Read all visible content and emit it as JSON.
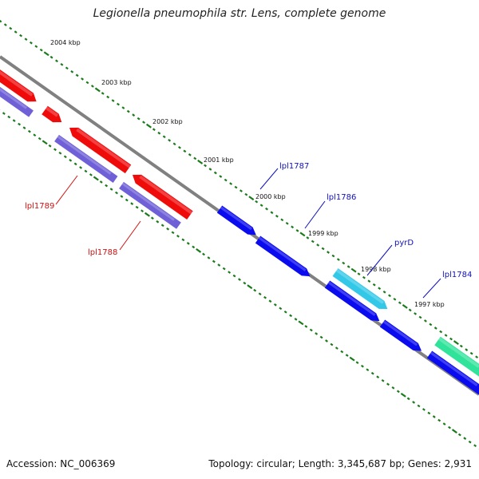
{
  "title": "Legionella pneumophila str. Lens, complete genome",
  "accession_text": "Accession: NC_006369",
  "topology_text": "Topology: circular; Length: 3,345,687 bp; Genes: 2,931",
  "colors": {
    "backbone": "#808080",
    "tick": "#1a7a1a",
    "forward_gene": "#0b0bf0",
    "reverse_gene": "#f00b0b",
    "reverse_cds_lane": "#7060d8",
    "pyrD_gene": "#33c8e8",
    "cluster_gene": "#30e39a",
    "forward_label": "#1010c0",
    "reverse_label": "#d01010"
  },
  "kbp_labels": [
    "2004 kbp",
    "2003 kbp",
    "2002 kbp",
    "2001 kbp",
    "2000 kbp",
    "1999 kbp",
    "1998 kbp",
    "1997 kbp"
  ],
  "gene_labels": {
    "lpl1787": "lpl1787",
    "lpl1786": "lpl1786",
    "pyrD": "pyrD",
    "lpl1784": "lpl1784",
    "lpl1789": "lpl1789",
    "lpl1788": "lpl1788"
  }
}
